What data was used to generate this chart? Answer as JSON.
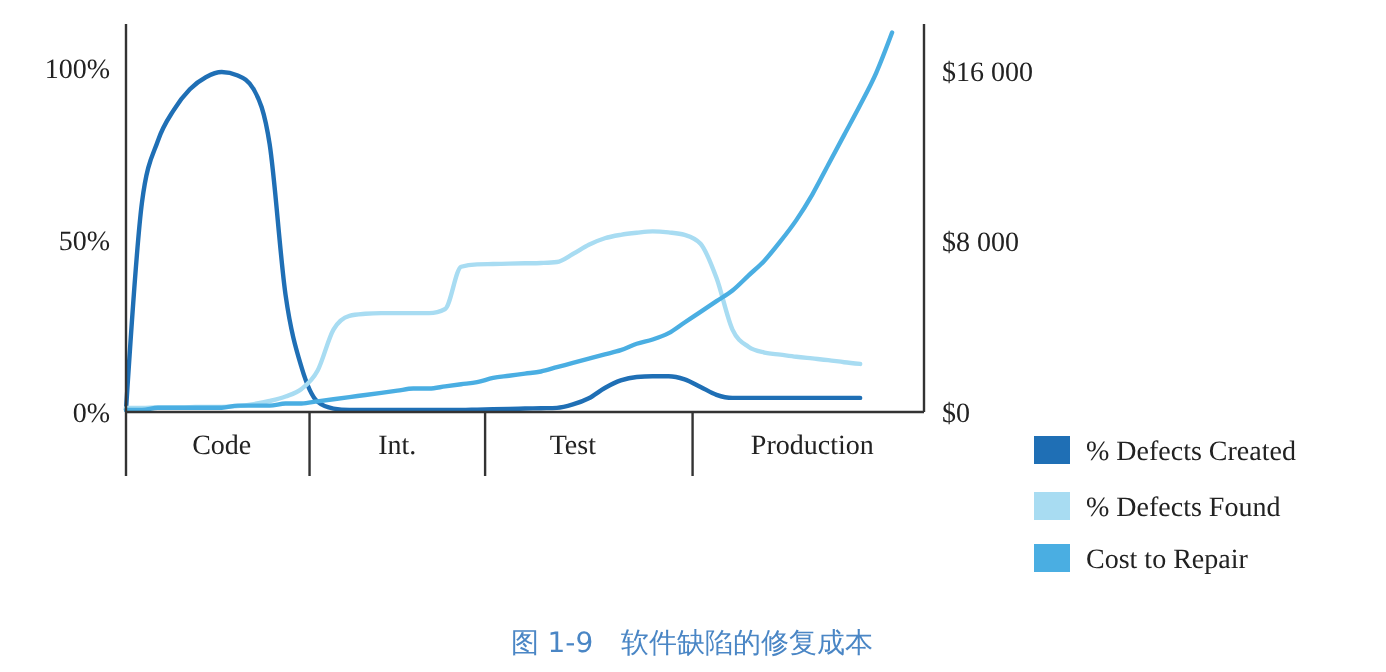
{
  "chart_data": {
    "type": "line",
    "annotations": [
      "图 1-9　软件缺陷的修复成本"
    ],
    "categories": [
      null,
      null,
      null,
      null,
      null,
      null,
      "Code",
      null,
      null,
      null,
      null,
      null,
      null,
      null,
      null,
      null,
      null,
      "Int.",
      null,
      null,
      null,
      null,
      null,
      null,
      null,
      null,
      null,
      null,
      "Test",
      null,
      null,
      null,
      null,
      null,
      null,
      null,
      null,
      null,
      null,
      null,
      null,
      null,
      null,
      "Production",
      null,
      null,
      null,
      null,
      null,
      null,
      null
    ],
    "ylim": [
      0,
      113
    ],
    "yticks": [
      {
        "value": 0,
        "label": "0%"
      },
      {
        "value": 50,
        "label": "50%"
      },
      {
        "value": 100,
        "label": "100%"
      }
    ],
    "y2lim": [
      0,
      18200
    ],
    "y2ticks": [
      {
        "value": 0,
        "label": "$0"
      },
      {
        "value": 8000,
        "label": "$8 000"
      },
      {
        "value": 16000,
        "label": "$16 000"
      }
    ],
    "legend": "right",
    "marker": "none",
    "line_style": "solid",
    "grid": false,
    "series": [
      {
        "name": "% Defects Created",
        "color": "#1f6fb5",
        "values": [
          0.6,
          61,
          79,
          88,
          94,
          97.5,
          99,
          98,
          94,
          78,
          34,
          13,
          3,
          1,
          0.6,
          0.6,
          0.6,
          0.6,
          0.6,
          0.6,
          0.6,
          0.6,
          0.7,
          0.8,
          0.9,
          1,
          1.1,
          1.2,
          2.2,
          4,
          7,
          9.2,
          10.2,
          10.4,
          10.4,
          9.5,
          7.3,
          5,
          4.1,
          4.1,
          4.1,
          4.1,
          4.1,
          4.1,
          4.1,
          4.1,
          4.1,
          null,
          null,
          null,
          null
        ]
      },
      {
        "name": "% Defects Found",
        "color": "#a8dcf2",
        "values": [
          1.2,
          1.2,
          1.3,
          1.3,
          1.4,
          1.5,
          1.5,
          1.7,
          2.3,
          3.2,
          4.5,
          6.7,
          12,
          24,
          28,
          28.6,
          28.8,
          28.8,
          28.8,
          28.8,
          30,
          42.3,
          43,
          43.1,
          43.2,
          43.3,
          43.4,
          43.7,
          46,
          48.7,
          50.6,
          51.6,
          52.2,
          52.6,
          52.3,
          51.6,
          49,
          39,
          24,
          19,
          17.3,
          16.7,
          16.1,
          15.6,
          15.1,
          14.5,
          14,
          null,
          null,
          null,
          null
        ]
      },
      {
        "name": "Cost to Repair",
        "color": "#4aaee2",
        "axis": "y2",
        "values": [
          100,
          100,
          200,
          200,
          200,
          200,
          200,
          300,
          300,
          300,
          400,
          400,
          500,
          600,
          700,
          800,
          900,
          1000,
          1100,
          1100,
          1200,
          1300,
          1400,
          1600,
          1700,
          1800,
          1900,
          2100,
          2300,
          2500,
          2700,
          2900,
          3200,
          3400,
          3700,
          4200,
          4700,
          5200,
          5700,
          6400,
          7100,
          8000,
          9000,
          10200,
          11600,
          13000,
          14400,
          15900,
          17800,
          null,
          null
        ]
      }
    ]
  }
}
